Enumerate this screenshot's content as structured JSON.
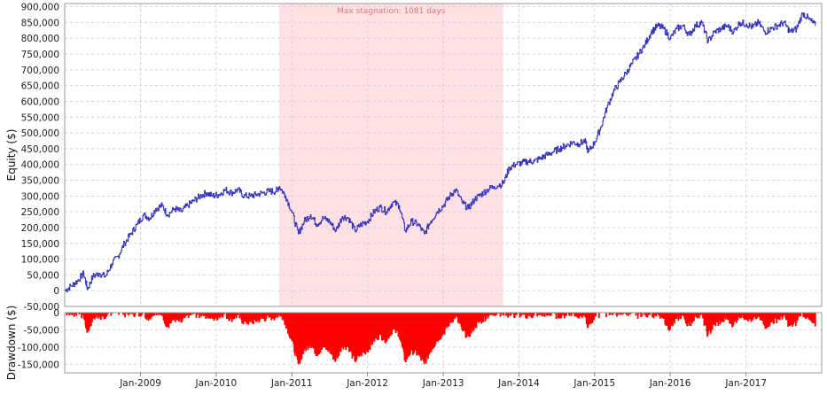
{
  "chart_data": [
    {
      "type": "line",
      "ylabel": "Equity ($)",
      "ylim": [
        -50000,
        910000
      ],
      "yticks": [
        -50000,
        0,
        50000,
        100000,
        150000,
        200000,
        250000,
        300000,
        350000,
        400000,
        450000,
        500000,
        550000,
        600000,
        650000,
        700000,
        750000,
        800000,
        850000,
        900000
      ],
      "ytick_labels": [
        "-50,000",
        "0",
        "50,000",
        "100,000",
        "150,000",
        "200,000",
        "250,000",
        "300,000",
        "350,000",
        "400,000",
        "450,000",
        "500,000",
        "550,000",
        "600,000",
        "650,000",
        "700,000",
        "750,000",
        "800,000",
        "850,000",
        "900,000"
      ],
      "grid": true,
      "line_color": "#3333bb",
      "annotation": {
        "label": "Max stagnation: 1081 days",
        "start": "2010-11-01",
        "end": "2013-10-17",
        "color": "#ffe0e4",
        "text_color": "#e07878"
      },
      "series": [
        {
          "points": [
            [
              "2008-01-02",
              0
            ],
            [
              "2008-02-01",
              15000
            ],
            [
              "2008-03-01",
              30000
            ],
            [
              "2008-04-01",
              55000
            ],
            [
              "2008-04-20",
              5000
            ],
            [
              "2008-05-15",
              45000
            ],
            [
              "2008-06-15",
              55000
            ],
            [
              "2008-07-15",
              45000
            ],
            [
              "2008-08-15",
              85000
            ],
            [
              "2008-09-15",
              110000
            ],
            [
              "2008-10-15",
              150000
            ],
            [
              "2008-11-15",
              180000
            ],
            [
              "2008-12-15",
              210000
            ],
            [
              "2009-01-15",
              240000
            ],
            [
              "2009-02-15",
              230000
            ],
            [
              "2009-03-15",
              260000
            ],
            [
              "2009-04-15",
              270000
            ],
            [
              "2009-05-10",
              240000
            ],
            [
              "2009-06-15",
              260000
            ],
            [
              "2009-07-15",
              250000
            ],
            [
              "2009-08-15",
              270000
            ],
            [
              "2009-09-15",
              285000
            ],
            [
              "2009-10-15",
              300000
            ],
            [
              "2009-11-15",
              310000
            ],
            [
              "2009-12-15",
              300000
            ],
            [
              "2010-01-15",
              305000
            ],
            [
              "2010-02-15",
              320000
            ],
            [
              "2010-03-15",
              310000
            ],
            [
              "2010-04-15",
              320000
            ],
            [
              "2010-05-15",
              300000
            ],
            [
              "2010-06-15",
              300000
            ],
            [
              "2010-07-15",
              305000
            ],
            [
              "2010-08-15",
              310000
            ],
            [
              "2010-09-15",
              315000
            ],
            [
              "2010-10-15",
              315000
            ],
            [
              "2010-11-01",
              330000
            ],
            [
              "2010-12-01",
              300000
            ],
            [
              "2011-01-01",
              250000
            ],
            [
              "2011-02-01",
              180000
            ],
            [
              "2011-03-01",
              220000
            ],
            [
              "2011-04-01",
              240000
            ],
            [
              "2011-05-01",
              210000
            ],
            [
              "2011-06-01",
              230000
            ],
            [
              "2011-07-01",
              220000
            ],
            [
              "2011-08-01",
              190000
            ],
            [
              "2011-09-01",
              235000
            ],
            [
              "2011-10-01",
              230000
            ],
            [
              "2011-11-01",
              190000
            ],
            [
              "2011-12-01",
              210000
            ],
            [
              "2012-01-01",
              220000
            ],
            [
              "2012-02-01",
              250000
            ],
            [
              "2012-03-01",
              265000
            ],
            [
              "2012-04-01",
              250000
            ],
            [
              "2012-05-01",
              280000
            ],
            [
              "2012-06-01",
              270000
            ],
            [
              "2012-07-01",
              190000
            ],
            [
              "2012-08-01",
              220000
            ],
            [
              "2012-09-01",
              210000
            ],
            [
              "2012-10-01",
              180000
            ],
            [
              "2012-11-01",
              220000
            ],
            [
              "2012-12-01",
              250000
            ],
            [
              "2013-01-01",
              270000
            ],
            [
              "2013-02-01",
              300000
            ],
            [
              "2013-03-01",
              320000
            ],
            [
              "2013-04-01",
              280000
            ],
            [
              "2013-05-01",
              260000
            ],
            [
              "2013-06-01",
              290000
            ],
            [
              "2013-07-01",
              305000
            ],
            [
              "2013-08-01",
              320000
            ],
            [
              "2013-09-01",
              330000
            ],
            [
              "2013-10-17",
              340000
            ],
            [
              "2013-11-15",
              390000
            ],
            [
              "2013-12-15",
              400000
            ],
            [
              "2014-01-15",
              405000
            ],
            [
              "2014-02-15",
              410000
            ],
            [
              "2014-03-15",
              410000
            ],
            [
              "2014-04-15",
              420000
            ],
            [
              "2014-05-15",
              430000
            ],
            [
              "2014-06-15",
              440000
            ],
            [
              "2014-07-15",
              450000
            ],
            [
              "2014-08-15",
              460000
            ],
            [
              "2014-09-15",
              470000
            ],
            [
              "2014-10-15",
              465000
            ],
            [
              "2014-11-15",
              475000
            ],
            [
              "2014-12-01",
              440000
            ],
            [
              "2015-01-01",
              470000
            ],
            [
              "2015-02-01",
              520000
            ],
            [
              "2015-03-01",
              580000
            ],
            [
              "2015-04-01",
              630000
            ],
            [
              "2015-05-01",
              660000
            ],
            [
              "2015-06-01",
              690000
            ],
            [
              "2015-07-01",
              720000
            ],
            [
              "2015-08-01",
              750000
            ],
            [
              "2015-09-01",
              780000
            ],
            [
              "2015-10-01",
              820000
            ],
            [
              "2015-11-01",
              840000
            ],
            [
              "2015-12-01",
              830000
            ],
            [
              "2016-01-01",
              800000
            ],
            [
              "2016-02-01",
              830000
            ],
            [
              "2016-03-01",
              840000
            ],
            [
              "2016-04-01",
              810000
            ],
            [
              "2016-05-01",
              840000
            ],
            [
              "2016-06-01",
              850000
            ],
            [
              "2016-07-01",
              790000
            ],
            [
              "2016-08-01",
              820000
            ],
            [
              "2016-09-01",
              830000
            ],
            [
              "2016-10-01",
              840000
            ],
            [
              "2016-11-01",
              820000
            ],
            [
              "2016-12-01",
              850000
            ],
            [
              "2017-01-01",
              845000
            ],
            [
              "2017-02-01",
              835000
            ],
            [
              "2017-03-01",
              850000
            ],
            [
              "2017-04-01",
              820000
            ],
            [
              "2017-05-01",
              830000
            ],
            [
              "2017-06-01",
              840000
            ],
            [
              "2017-07-01",
              850000
            ],
            [
              "2017-08-01",
              820000
            ],
            [
              "2017-09-01",
              830000
            ],
            [
              "2017-10-01",
              880000
            ],
            [
              "2017-11-01",
              860000
            ],
            [
              "2017-12-01",
              840000
            ]
          ]
        }
      ]
    },
    {
      "type": "bar",
      "ylabel": "Drawdown ($)",
      "ylim": [
        -175000,
        0
      ],
      "yticks": [
        0,
        -50000,
        -100000,
        -150000
      ],
      "ytick_labels": [
        "0",
        "-50,000",
        "-100,000",
        "-150,000"
      ],
      "bar_color": "#ff0000",
      "grid": true,
      "x_tick_labels": [
        {
          "date": "2009-01-01",
          "label": "Jan-2009"
        },
        {
          "date": "2010-01-01",
          "label": "Jan-2010"
        },
        {
          "date": "2011-01-01",
          "label": "Jan-2011"
        },
        {
          "date": "2012-01-01",
          "label": "Jan-2012"
        },
        {
          "date": "2013-01-01",
          "label": "Jan-2013"
        },
        {
          "date": "2014-01-01",
          "label": "Jan-2014"
        },
        {
          "date": "2015-01-01",
          "label": "Jan-2015"
        },
        {
          "date": "2016-01-01",
          "label": "Jan-2016"
        },
        {
          "date": "2017-01-01",
          "label": "Jan-2017"
        }
      ],
      "x_range": [
        "2008-01-01",
        "2018-01-01"
      ],
      "drawdown_from": "equity"
    }
  ]
}
